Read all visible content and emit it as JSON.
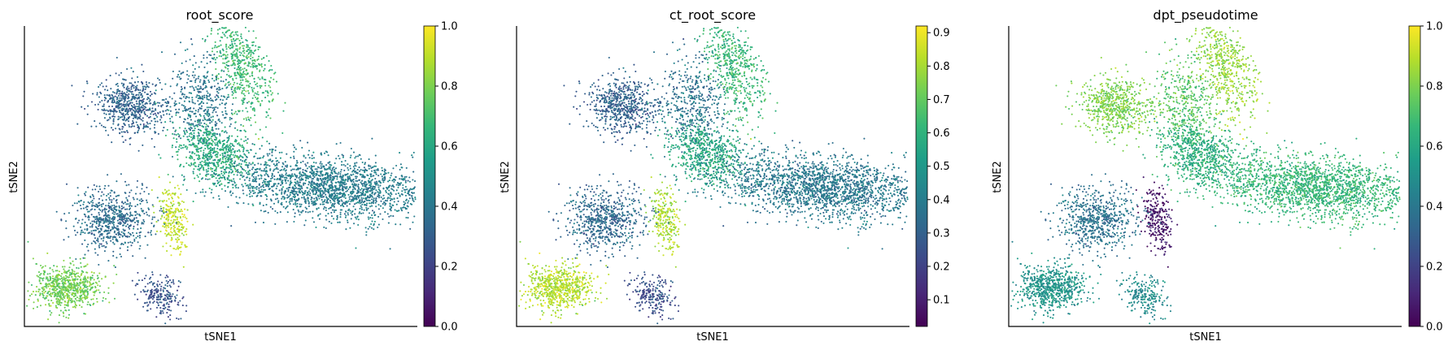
{
  "colormap": {
    "name": "viridis",
    "stops": [
      "#440154",
      "#482878",
      "#3e4989",
      "#31688e",
      "#26828e",
      "#1f9e89",
      "#35b779",
      "#6ece58",
      "#b5de2b",
      "#fde725"
    ]
  },
  "chart_data": [
    {
      "type": "scatter",
      "title": "root_score",
      "xlabel": "tSNE1",
      "ylabel": "tSNE2",
      "colorbar": {
        "range": [
          0.0,
          1.0
        ],
        "ticks": [
          0.0,
          0.2,
          0.4,
          0.6,
          0.8,
          1.0
        ],
        "tick_labels": [
          "0.0",
          "0.2",
          "0.4",
          "0.6",
          "0.8",
          "1.0"
        ]
      },
      "clusters": [
        {
          "region": "upper-left arm",
          "cx": -38,
          "cy": 30,
          "n": 650,
          "value": 0.32
        },
        {
          "region": "upper-middle stem",
          "cx": -16,
          "cy": 31,
          "n": 450,
          "value": 0.4
        },
        {
          "region": "top-right arm",
          "cx": -3,
          "cy": 45,
          "n": 550,
          "value": 0.68
        },
        {
          "region": "central junction",
          "cx": -12,
          "cy": 12,
          "n": 650,
          "value": 0.62
        },
        {
          "region": "right lobe",
          "cx": 25,
          "cy": 0,
          "n": 2000,
          "value": 0.42
        },
        {
          "region": "bright band",
          "cx": -25,
          "cy": -12,
          "n": 260,
          "value": 0.9
        },
        {
          "region": "lower-left group",
          "cx": -44,
          "cy": -12,
          "n": 650,
          "value": 0.36
        },
        {
          "region": "lower-left blob",
          "cx": -58,
          "cy": -37,
          "n": 700,
          "value": 0.78
        },
        {
          "region": "bottom tail",
          "cx": -29,
          "cy": -40,
          "n": 220,
          "value": 0.26
        }
      ]
    },
    {
      "type": "scatter",
      "title": "ct_root_score",
      "xlabel": "tSNE1",
      "ylabel": "tSNE2",
      "colorbar": {
        "range": [
          0.02,
          0.92
        ],
        "ticks": [
          0.1,
          0.2,
          0.3,
          0.4,
          0.5,
          0.6,
          0.7,
          0.8,
          0.9
        ],
        "tick_labels": [
          "0.1",
          "0.2",
          "0.3",
          "0.4",
          "0.5",
          "0.6",
          "0.7",
          "0.8",
          "0.9"
        ]
      },
      "clusters": [
        {
          "region": "upper-left arm",
          "cx": -38,
          "cy": 30,
          "n": 650,
          "value": 0.3
        },
        {
          "region": "upper-middle stem",
          "cx": -16,
          "cy": 31,
          "n": 450,
          "value": 0.37
        },
        {
          "region": "top-right arm",
          "cx": -3,
          "cy": 45,
          "n": 550,
          "value": 0.62
        },
        {
          "region": "central junction",
          "cx": -12,
          "cy": 12,
          "n": 650,
          "value": 0.56
        },
        {
          "region": "right lobe",
          "cx": 25,
          "cy": 0,
          "n": 2000,
          "value": 0.38
        },
        {
          "region": "bright band",
          "cx": -25,
          "cy": -12,
          "n": 260,
          "value": 0.8
        },
        {
          "region": "lower-left group",
          "cx": -44,
          "cy": -12,
          "n": 650,
          "value": 0.33
        },
        {
          "region": "lower-left blob",
          "cx": -58,
          "cy": -37,
          "n": 700,
          "value": 0.82
        },
        {
          "region": "bottom tail",
          "cx": -29,
          "cy": -40,
          "n": 220,
          "value": 0.24
        }
      ]
    },
    {
      "type": "scatter",
      "title": "dpt_pseudotime",
      "xlabel": "tSNE1",
      "ylabel": "tSNE2",
      "colorbar": {
        "range": [
          0.0,
          1.0
        ],
        "ticks": [
          0.0,
          0.2,
          0.4,
          0.6,
          0.8,
          1.0
        ],
        "tick_labels": [
          "0.0",
          "0.2",
          "0.4",
          "0.6",
          "0.8",
          "1.0"
        ]
      },
      "clusters": [
        {
          "region": "upper-left arm",
          "cx": -38,
          "cy": 30,
          "n": 650,
          "value": 0.8
        },
        {
          "region": "upper-middle stem",
          "cx": -16,
          "cy": 31,
          "n": 450,
          "value": 0.74
        },
        {
          "region": "top-right arm",
          "cx": -3,
          "cy": 45,
          "n": 550,
          "value": 0.84
        },
        {
          "region": "central junction",
          "cx": -12,
          "cy": 12,
          "n": 650,
          "value": 0.62
        },
        {
          "region": "right lobe",
          "cx": 25,
          "cy": 0,
          "n": 2000,
          "value": 0.66
        },
        {
          "region": "bright band",
          "cx": -25,
          "cy": -12,
          "n": 260,
          "value": 0.05
        },
        {
          "region": "lower-left group",
          "cx": -44,
          "cy": -12,
          "n": 650,
          "value": 0.38
        },
        {
          "region": "lower-left blob",
          "cx": -58,
          "cy": -37,
          "n": 700,
          "value": 0.52
        },
        {
          "region": "bottom tail",
          "cx": -29,
          "cy": -40,
          "n": 220,
          "value": 0.48
        }
      ]
    }
  ]
}
